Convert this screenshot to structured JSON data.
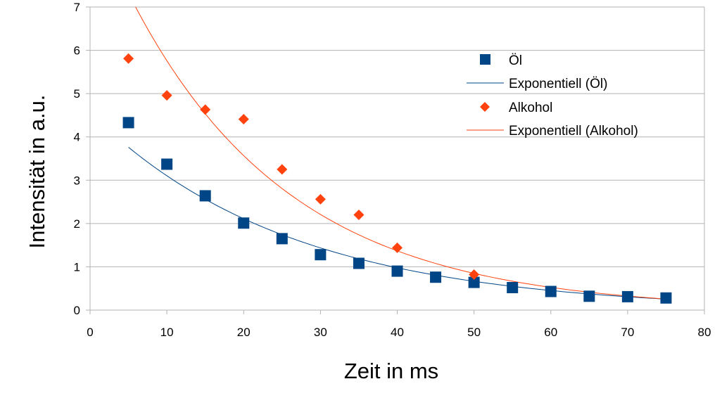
{
  "chart_data": {
    "type": "scatter",
    "title": "",
    "xlabel": "Zeit in ms",
    "ylabel": "Intensität in a.u.",
    "xlim": [
      0,
      80
    ],
    "ylim": [
      0,
      7
    ],
    "xticks": [
      0,
      10,
      20,
      30,
      40,
      50,
      60,
      70,
      80
    ],
    "yticks": [
      0,
      1,
      2,
      3,
      4,
      5,
      6,
      7
    ],
    "grid": "horizontal",
    "legend_position": "right",
    "series": [
      {
        "name": "Öl",
        "marker": "square",
        "color": "#004586",
        "x": [
          5,
          10,
          15,
          20,
          25,
          30,
          35,
          40,
          45,
          50,
          55,
          60,
          65,
          70,
          75
        ],
        "y": [
          4.33,
          3.37,
          2.64,
          2.01,
          1.65,
          1.28,
          1.08,
          0.9,
          0.76,
          0.64,
          0.52,
          0.43,
          0.32,
          0.31,
          0.28
        ]
      },
      {
        "name": "Exponentiell (Öl)",
        "type": "trendline",
        "color": "#004586",
        "fit": {
          "a": 4.56,
          "b": -0.0385
        },
        "x_range": [
          5,
          75
        ]
      },
      {
        "name": "Alkohol",
        "marker": "diamond",
        "color": "#ff420e",
        "x": [
          5,
          10,
          15,
          20,
          25,
          30,
          35,
          40,
          50
        ],
        "y": [
          5.81,
          4.96,
          4.63,
          4.41,
          3.25,
          2.56,
          2.2,
          1.44,
          0.82
        ]
      },
      {
        "name": "Exponentiell (Alkohol)",
        "type": "trendline",
        "color": "#ff420e",
        "fit": {
          "a": 9.3,
          "b": -0.0479
        },
        "x_range": [
          5,
          75
        ]
      }
    ]
  }
}
